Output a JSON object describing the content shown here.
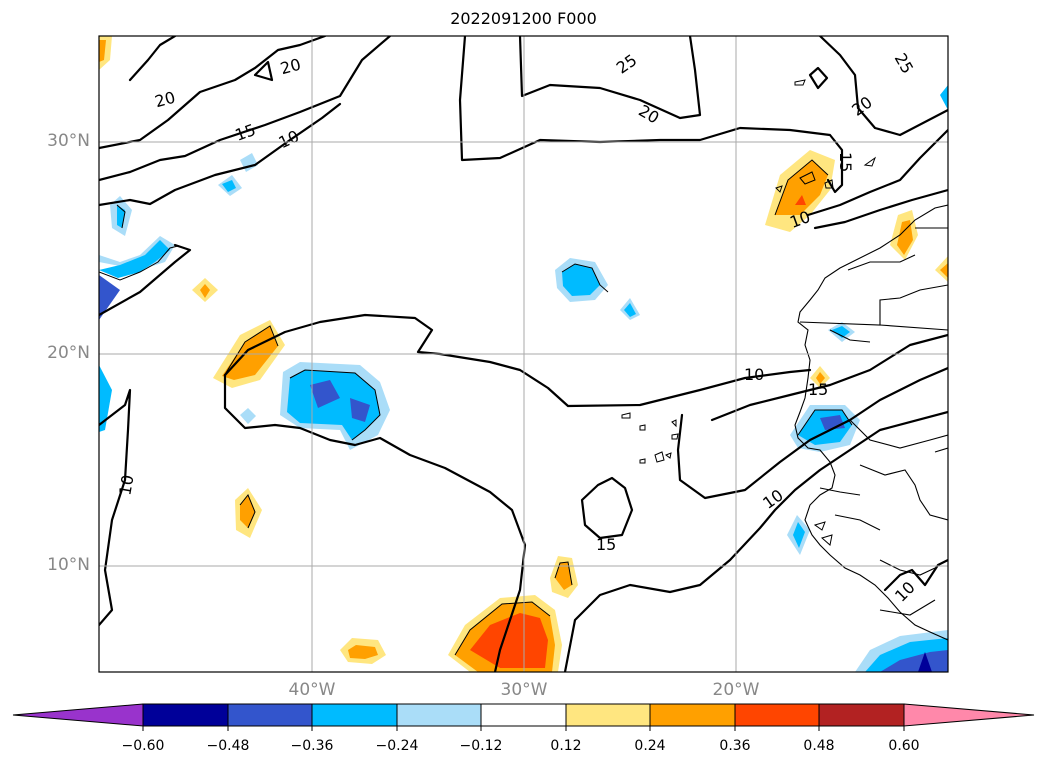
{
  "title": "2022091200 F000",
  "latitude_labels": [
    "30°N",
    "20°N",
    "10°N"
  ],
  "longitude_labels": [
    "40°W",
    "30°W",
    "20°W"
  ],
  "colorbar": {
    "ticks": [
      "−0.60",
      "−0.48",
      "−0.36",
      "−0.24",
      "−0.12",
      "0.12",
      "0.24",
      "0.36",
      "0.48",
      "0.60"
    ],
    "colors": [
      "#9933cc",
      "#000099",
      "#3355cc",
      "#00bbff",
      "#aaddf8",
      "#ffffff",
      "#ffe680",
      "#ffa000",
      "#ff4500",
      "#b22222",
      "#ff88aa"
    ]
  },
  "contour_labels": [
    "20",
    "25",
    "20",
    "20",
    "25",
    "20",
    "15",
    "10",
    "15",
    "10",
    "10",
    "15",
    "10",
    "10",
    "15",
    "10"
  ]
}
